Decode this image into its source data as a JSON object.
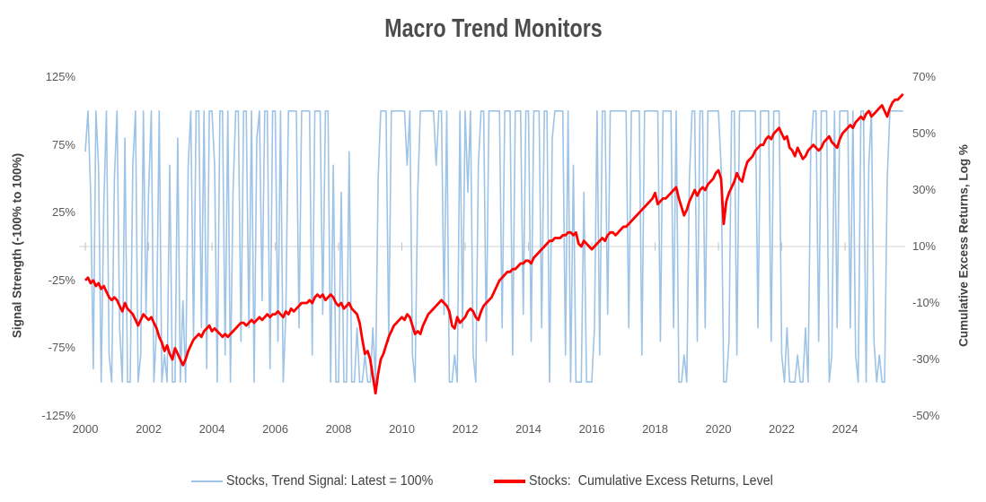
{
  "title": "Macro Trend Monitors",
  "axes": {
    "left": {
      "title": "Signal Strength (-100% to 100%)",
      "ticks": [
        "125%",
        "75%",
        "25%",
        "-25%",
        "-75%",
        "-125%"
      ],
      "tick_values": [
        125,
        75,
        25,
        -25,
        -75,
        -125
      ],
      "range": [
        -125,
        125
      ]
    },
    "right": {
      "title": "Cumulative Excess Returns, Log %",
      "ticks": [
        "70%",
        "50%",
        "30%",
        "10%",
        "-10%",
        "-30%",
        "-50%"
      ],
      "tick_values": [
        70,
        50,
        30,
        10,
        -10,
        -30,
        -50
      ],
      "range": [
        -50,
        70
      ]
    },
    "x": {
      "ticks": [
        "2000",
        "2002",
        "2004",
        "2006",
        "2008",
        "2010",
        "2012",
        "2014",
        "2016",
        "2018",
        "2020",
        "2022",
        "2024"
      ],
      "tick_values": [
        2000,
        2002,
        2004,
        2006,
        2008,
        2010,
        2012,
        2014,
        2016,
        2018,
        2020,
        2022,
        2024
      ],
      "range": [
        1999.8,
        2025.9
      ]
    }
  },
  "colors": {
    "signal_blue": "#9DC3E6",
    "returns_red": "#FF0000",
    "gridline": "#D9D9D9",
    "tick_mark": "#BFBFBF",
    "tick_label": "#595959",
    "axis_title": "#404040",
    "title": "#4C4C4C"
  },
  "chart_data": {
    "type": "line",
    "title": "Macro Trend Monitors",
    "x_start_year": 2000,
    "points_per_year": 12,
    "x_range": [
      1999.8,
      2025.9
    ],
    "grid": "single horizontal gridline at left-axis 0% (right-axis 10%) with small tick marks every 2 years",
    "legend_position": "bottom-center",
    "series": [
      {
        "name": "Stocks, Trend Signal: Latest = 100%",
        "axis": "left",
        "color": "#9DC3E6",
        "stroke_width": 1.6,
        "values": [
          70,
          100,
          40,
          -90,
          100,
          60,
          -100,
          30,
          100,
          -80,
          -100,
          50,
          100,
          -60,
          -100,
          80,
          -100,
          -100,
          60,
          100,
          -100,
          -80,
          100,
          -50,
          40,
          100,
          -100,
          -60,
          100,
          -100,
          -80,
          -100,
          60,
          -100,
          -100,
          80,
          -100,
          -40,
          -100,
          60,
          100,
          -70,
          100,
          100,
          -60,
          100,
          -90,
          100,
          100,
          60,
          -100,
          100,
          100,
          -80,
          100,
          -100,
          40,
          100,
          100,
          -70,
          100,
          100,
          -60,
          100,
          -100,
          80,
          100,
          -40,
          100,
          100,
          -90,
          100,
          100,
          -70,
          100,
          -100,
          -50,
          100,
          100,
          100,
          100,
          -60,
          100,
          100,
          100,
          100,
          -80,
          100,
          100,
          100,
          -50,
          100,
          100,
          -100,
          60,
          -100,
          -100,
          40,
          -100,
          -100,
          70,
          -100,
          -100,
          -60,
          -100,
          -100,
          -80,
          -100,
          -100,
          -60,
          -100,
          50,
          100,
          100,
          100,
          -70,
          100,
          100,
          100,
          100,
          100,
          100,
          60,
          100,
          -80,
          -100,
          40,
          100,
          100,
          100,
          100,
          100,
          100,
          60,
          100,
          100,
          -50,
          100,
          -100,
          -100,
          -80,
          -100,
          100,
          -60,
          100,
          40,
          100,
          -80,
          -100,
          60,
          100,
          100,
          -70,
          100,
          100,
          100,
          100,
          100,
          -60,
          100,
          100,
          100,
          -80,
          100,
          100,
          100,
          -50,
          100,
          100,
          -70,
          100,
          100,
          100,
          -60,
          100,
          100,
          -100,
          80,
          100,
          100,
          100,
          100,
          -80,
          100,
          -100,
          60,
          -100,
          -100,
          -100,
          40,
          -100,
          -100,
          -100,
          -60,
          100,
          -80,
          100,
          100,
          -50,
          100,
          100,
          100,
          100,
          100,
          100,
          100,
          -60,
          100,
          100,
          100,
          100,
          -80,
          100,
          100,
          100,
          100,
          100,
          100,
          -70,
          100,
          100,
          100,
          100,
          -60,
          100,
          -100,
          -100,
          -80,
          -100,
          50,
          100,
          100,
          -70,
          100,
          100,
          -60,
          100,
          100,
          100,
          100,
          100,
          60,
          -100,
          -100,
          -70,
          100,
          100,
          -80,
          100,
          100,
          100,
          100,
          100,
          100,
          100,
          -60,
          100,
          100,
          100,
          100,
          -70,
          100,
          100,
          100,
          -80,
          -100,
          -60,
          -100,
          -100,
          -100,
          -80,
          -100,
          -100,
          -60,
          -100,
          70,
          100,
          100,
          -70,
          100,
          100,
          100,
          -100,
          -80,
          100,
          -60,
          100,
          100,
          100,
          100,
          -60,
          100,
          -80,
          -100,
          100,
          100,
          -100,
          60,
          100,
          -70,
          -100,
          -80,
          -100,
          -100,
          50,
          100,
          100,
          100,
          100,
          100,
          100
        ]
      },
      {
        "name": "Stocks:  Cumulative Excess Returns, Level",
        "axis": "right",
        "color": "#FF0000",
        "stroke_width": 2.8,
        "values": [
          -2,
          -1,
          -3,
          -2,
          -4,
          -3,
          -5,
          -4,
          -6,
          -8,
          -9,
          -8,
          -9,
          -11,
          -13,
          -10,
          -12,
          -13,
          -14,
          -16,
          -18,
          -16,
          -14,
          -15,
          -16,
          -15,
          -17,
          -19,
          -22,
          -24,
          -27,
          -25,
          -28,
          -30,
          -26,
          -28,
          -30,
          -32,
          -30,
          -27,
          -25,
          -23,
          -22,
          -21,
          -22,
          -20,
          -19,
          -18,
          -20,
          -19,
          -20,
          -21,
          -22,
          -21,
          -22,
          -21,
          -20,
          -19,
          -18,
          -17,
          -17,
          -18,
          -17,
          -16,
          -17,
          -16,
          -15,
          -16,
          -15,
          -14,
          -15,
          -14,
          -14,
          -13,
          -14,
          -15,
          -13,
          -14,
          -12,
          -13,
          -12,
          -11,
          -10,
          -10,
          -10,
          -9,
          -10,
          -8,
          -7,
          -8,
          -7,
          -9,
          -8,
          -7,
          -8,
          -10,
          -11,
          -10,
          -12,
          -11,
          -10,
          -12,
          -13,
          -14,
          -17,
          -23,
          -28,
          -27,
          -30,
          -36,
          -42,
          -35,
          -30,
          -28,
          -25,
          -22,
          -20,
          -18,
          -17,
          -16,
          -15,
          -16,
          -14,
          -15,
          -18,
          -21,
          -20,
          -21,
          -18,
          -16,
          -14,
          -13,
          -12,
          -11,
          -10,
          -9,
          -10,
          -11,
          -13,
          -18,
          -19,
          -15,
          -17,
          -16,
          -15,
          -13,
          -12,
          -13,
          -15,
          -16,
          -13,
          -11,
          -10,
          -9,
          -8,
          -6,
          -4,
          -2,
          -1,
          0,
          1,
          1,
          2,
          2,
          3,
          4,
          4,
          5,
          5,
          4,
          6,
          7,
          8,
          9,
          10,
          11,
          12,
          12,
          13,
          13,
          13,
          14,
          14,
          15,
          15,
          14,
          15,
          11,
          10,
          12,
          11,
          10,
          9,
          10,
          11,
          12,
          13,
          12,
          14,
          15,
          15,
          14,
          15,
          16,
          17,
          17,
          18,
          19,
          20,
          21,
          22,
          23,
          24,
          25,
          26,
          27,
          29,
          25,
          26,
          27,
          27,
          28,
          29,
          30,
          31,
          27,
          24,
          21,
          23,
          26,
          28,
          30,
          28,
          30,
          31,
          30,
          32,
          33,
          34,
          36,
          37,
          34,
          18,
          26,
          29,
          31,
          33,
          36,
          34,
          33,
          37,
          40,
          41,
          42,
          44,
          45,
          46,
          46,
          48,
          49,
          48,
          50,
          51,
          52,
          50,
          48,
          49,
          45,
          44,
          42,
          45,
          43,
          41,
          42,
          44,
          45,
          46,
          45,
          44,
          45,
          47,
          48,
          49,
          47,
          46,
          45,
          48,
          50,
          51,
          52,
          53,
          52,
          54,
          55,
          56,
          55,
          57,
          58,
          56,
          57,
          58,
          59,
          60,
          58,
          56,
          59,
          61,
          62,
          62,
          63,
          64
        ]
      }
    ]
  }
}
